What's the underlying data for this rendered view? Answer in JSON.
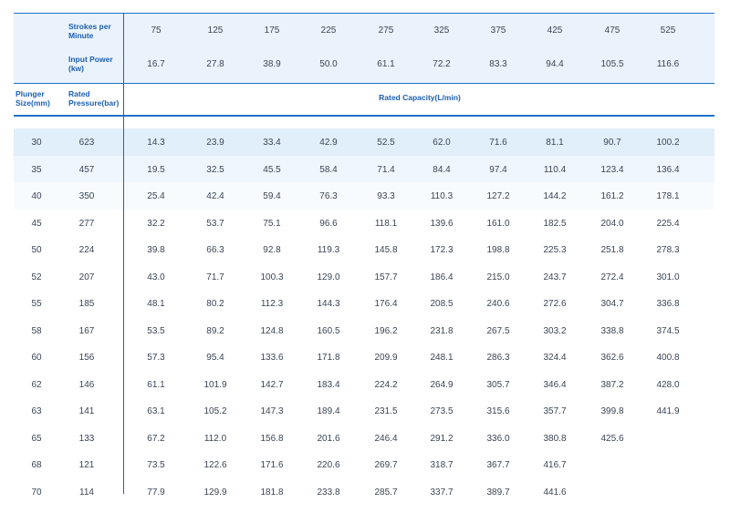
{
  "header": {
    "strokes_label": "Strokes per Minute",
    "strokes": [
      "75",
      "125",
      "175",
      "225",
      "275",
      "325",
      "375",
      "425",
      "475",
      "525"
    ],
    "power_label": "Input Power (kw)",
    "power": [
      "16.7",
      "27.8",
      "38.9",
      "50.0",
      "61.1",
      "72.2",
      "83.3",
      "94.4",
      "105.5",
      "116.6"
    ],
    "plunger_label": "Plunger Size(mm)",
    "pressure_label": "Rated Pressure(bar)",
    "capacity_label": "Rated Capacity(L/min)"
  },
  "rows": [
    {
      "size": "30",
      "pressure": "623",
      "values": [
        "14.3",
        "23.9",
        "33.4",
        "42.9",
        "52.5",
        "62.0",
        "71.6",
        "81.1",
        "90.7",
        "100.2"
      ]
    },
    {
      "size": "35",
      "pressure": "457",
      "values": [
        "19.5",
        "32.5",
        "45.5",
        "58.4",
        "71.4",
        "84.4",
        "97.4",
        "110.4",
        "123.4",
        "136.4"
      ]
    },
    {
      "size": "40",
      "pressure": "350",
      "values": [
        "25.4",
        "42.4",
        "59.4",
        "76.3",
        "93.3",
        "110.3",
        "127.2",
        "144.2",
        "161.2",
        "178.1"
      ]
    },
    {
      "size": "45",
      "pressure": "277",
      "values": [
        "32.2",
        "53.7",
        "75.1",
        "96.6",
        "118.1",
        "139.6",
        "161.0",
        "182.5",
        "204.0",
        "225.4"
      ]
    },
    {
      "size": "50",
      "pressure": "224",
      "values": [
        "39.8",
        "66.3",
        "92.8",
        "119.3",
        "145.8",
        "172.3",
        "198.8",
        "225.3",
        "251.8",
        "278.3"
      ]
    },
    {
      "size": "52",
      "pressure": "207",
      "values": [
        "43.0",
        "71.7",
        "100.3",
        "129.0",
        "157.7",
        "186.4",
        "215.0",
        "243.7",
        "272.4",
        "301.0"
      ]
    },
    {
      "size": "55",
      "pressure": "185",
      "values": [
        "48.1",
        "80.2",
        "112.3",
        "144.3",
        "176.4",
        "208.5",
        "240.6",
        "272.6",
        "304.7",
        "336.8"
      ]
    },
    {
      "size": "58",
      "pressure": "167",
      "values": [
        "53.5",
        "89.2",
        "124.8",
        "160.5",
        "196.2",
        "231.8",
        "267.5",
        "303.2",
        "338.8",
        "374.5"
      ]
    },
    {
      "size": "60",
      "pressure": "156",
      "values": [
        "57.3",
        "95.4",
        "133.6",
        "171.8",
        "209.9",
        "248.1",
        "286.3",
        "324.4",
        "362.6",
        "400.8"
      ]
    },
    {
      "size": "62",
      "pressure": "146",
      "values": [
        "61.1",
        "101.9",
        "142.7",
        "183.4",
        "224.2",
        "264.9",
        "305.7",
        "346.4",
        "387.2",
        "428.0"
      ]
    },
    {
      "size": "63",
      "pressure": "141",
      "values": [
        "63.1",
        "105.2",
        "147.3",
        "189.4",
        "231.5",
        "273.5",
        "315.6",
        "357.7",
        "399.8",
        "441.9"
      ]
    },
    {
      "size": "65",
      "pressure": "133",
      "values": [
        "67.2",
        "112.0",
        "156.8",
        "201.6",
        "246.4",
        "291.2",
        "336.0",
        "380.8",
        "425.6",
        ""
      ]
    },
    {
      "size": "68",
      "pressure": "121",
      "values": [
        "73.5",
        "122.6",
        "171.6",
        "220.6",
        "269.7",
        "318.7",
        "367.7",
        "416.7",
        "",
        ""
      ]
    },
    {
      "size": "70",
      "pressure": "114",
      "values": [
        "77.9",
        "129.9",
        "181.8",
        "233.8",
        "285.7",
        "337.7",
        "389.7",
        "441.6",
        "",
        ""
      ]
    }
  ]
}
